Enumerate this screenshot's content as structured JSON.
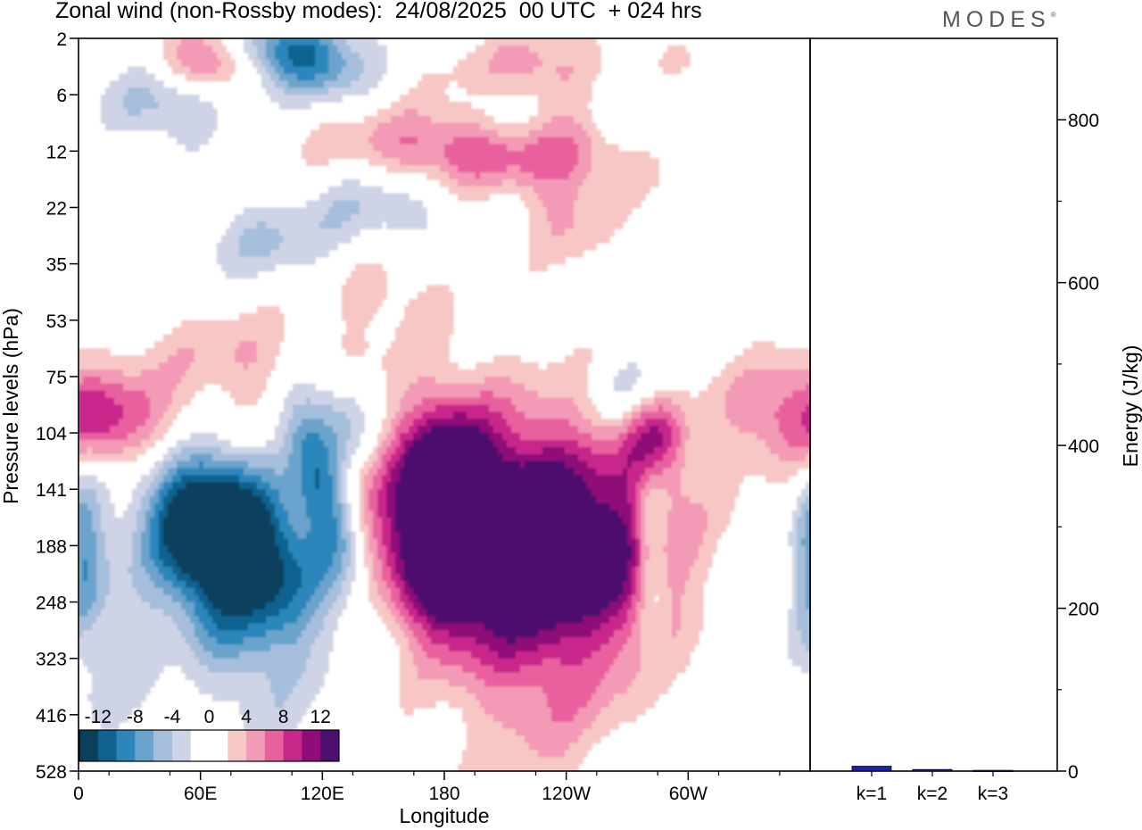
{
  "header": {
    "title": "Zonal wind (non-Rossby modes):  24/08/2025  00 UTC  + 024 hrs",
    "logo": "MODES"
  },
  "chart_data": [
    {
      "type": "heatmap",
      "variable": "Zonal wind (non-Rossby modes)",
      "xlabel": "Longitude",
      "ylabel": "Pressure levels (hPa)",
      "x_ticks": [
        "0",
        "60E",
        "120E",
        "180",
        "120W",
        "60W"
      ],
      "y_ticks": [
        "2",
        "6",
        "12",
        "22",
        "35",
        "53",
        "75",
        "104",
        "141",
        "188",
        "248",
        "323",
        "416",
        "528"
      ],
      "colorbar": {
        "labels": [
          "-12",
          "-8",
          "-4",
          "0",
          "4",
          "8",
          "12"
        ],
        "colors": [
          "#0c3f5b",
          "#11628f",
          "#2c86bb",
          "#6aa3cb",
          "#a5bedb",
          "#cfd3e6",
          "#ffffff",
          "#ffffff",
          "#f7c7c5",
          "#f39ab6",
          "#e9609e",
          "#c8288a",
          "#8e0d78",
          "#4d0f6e"
        ]
      },
      "features": [
        {
          "name": "strong easterly core",
          "lon": 75,
          "level_hPa": 188,
          "value": -14
        },
        {
          "name": "easterly core",
          "lon": 118,
          "level_hPa": 141,
          "value": -10
        },
        {
          "name": "easterly upper band",
          "lon": 110,
          "level_hPa": 2,
          "value": -10
        },
        {
          "name": "westerly core",
          "lon": 180,
          "level_hPa": 188,
          "value": 14
        },
        {
          "name": "westerly lower band",
          "lon": 10,
          "level_hPa": 104,
          "value": 10
        },
        {
          "name": "westerly upper band",
          "lon": 200,
          "level_hPa": 6,
          "value": 10
        },
        {
          "name": "westerly east",
          "lon": 283,
          "level_hPa": 104,
          "value": 8
        }
      ]
    },
    {
      "type": "bar",
      "ylabel": "Energy (J/kg)",
      "categories": [
        "k=1",
        "k=2",
        "k=3"
      ],
      "values": [
        6,
        2,
        1
      ],
      "ylim": [
        0,
        900
      ],
      "y_ticks": [
        "0",
        "200",
        "400",
        "600",
        "800"
      ],
      "bar_color": "#1f1fb4"
    }
  ]
}
